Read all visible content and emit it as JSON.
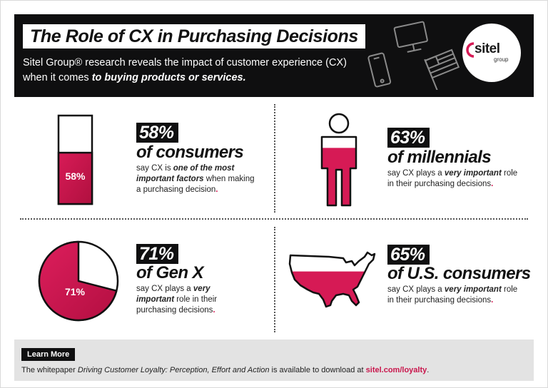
{
  "header": {
    "title": "The Role of CX in Purchasing Decisions",
    "subtitle_pre": "Sitel Group® research reveals the impact of customer experience (CX) when it comes ",
    "subtitle_bold": "to buying products or services.",
    "logo_word": "sitel",
    "logo_sub": "group"
  },
  "stats": [
    {
      "pct": "58%",
      "line": "of consumers",
      "desc_pre": "say CX is ",
      "desc_bold": "one of the most important factors",
      "desc_post": " when making a purchasing decision",
      "graphic_label": "58%",
      "value": 58
    },
    {
      "pct": "63%",
      "line": "of millennials",
      "desc_pre": "say CX plays a ",
      "desc_bold": "very important",
      "desc_post": " role in their purchasing decisions",
      "value": 63
    },
    {
      "pct": "71%",
      "line": "of Gen X",
      "desc_pre": "say CX plays a ",
      "desc_bold": "very important",
      "desc_post": " role in their purchasing decisions",
      "graphic_label": "71%",
      "value": 71
    },
    {
      "pct": "65%",
      "line": "of U.S. consumers",
      "desc_pre": "say CX plays a ",
      "desc_bold": "very important",
      "desc_post": " role in their purchasing decisions",
      "value": 65
    }
  ],
  "footer": {
    "button": "Learn More",
    "text_pre": "The whitepaper ",
    "text_italic": "Driving Customer Loyalty: Perception, Effort and Action",
    "text_mid": " is available to download at ",
    "link": "sitel.com/loyalty",
    "text_end": "."
  },
  "colors": {
    "accent": "#d61a55",
    "dark": "#0f0f10",
    "footer_bg": "#e3e3e3"
  }
}
